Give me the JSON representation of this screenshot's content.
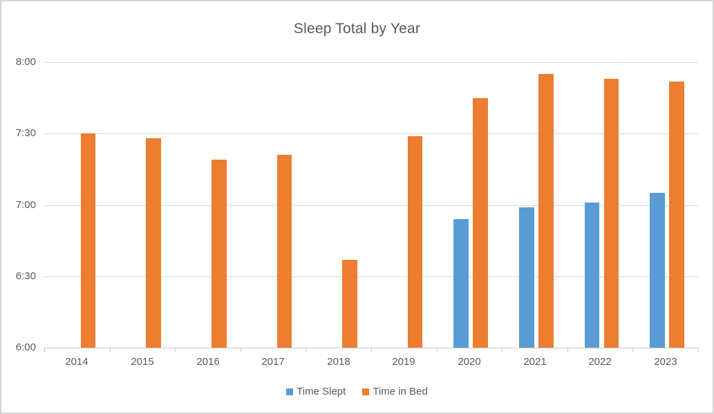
{
  "window": {
    "background": "#ffffff",
    "border_color": "#d3d3d3"
  },
  "chart_data": {
    "type": "bar",
    "title": "Sleep Total by Year",
    "categories": [
      "2014",
      "2015",
      "2016",
      "2017",
      "2018",
      "2019",
      "2020",
      "2021",
      "2022",
      "2023"
    ],
    "series": [
      {
        "name": "Time Slept",
        "color": "#5B9BD5",
        "values": [
          null,
          null,
          null,
          null,
          null,
          null,
          "6:54",
          "6:59",
          "7:01",
          "7:05"
        ]
      },
      {
        "name": "Time in Bed",
        "color": "#ED7D31",
        "values": [
          "7:30",
          "7:28",
          "7:19",
          "7:21",
          "6:37",
          "7:29",
          "7:45",
          "7:55",
          "7:53",
          "7:52"
        ]
      }
    ],
    "y_axis": {
      "min": "6:00",
      "max": "8:00",
      "tick_interval_minutes": 30,
      "ticks": [
        "6:00",
        "6:30",
        "7:00",
        "7:30",
        "8:00"
      ]
    },
    "x_axis": {
      "ticks": [
        "2014",
        "2015",
        "2016",
        "2017",
        "2018",
        "2019",
        "2020",
        "2021",
        "2022",
        "2023"
      ]
    },
    "legend": {
      "position": "bottom",
      "entries": [
        "Time Slept",
        "Time in Bed"
      ]
    },
    "grid": true,
    "colors": {
      "text": "#595959",
      "gridline": "#D9D9D9",
      "axis_line": "#C6C6C6"
    }
  }
}
